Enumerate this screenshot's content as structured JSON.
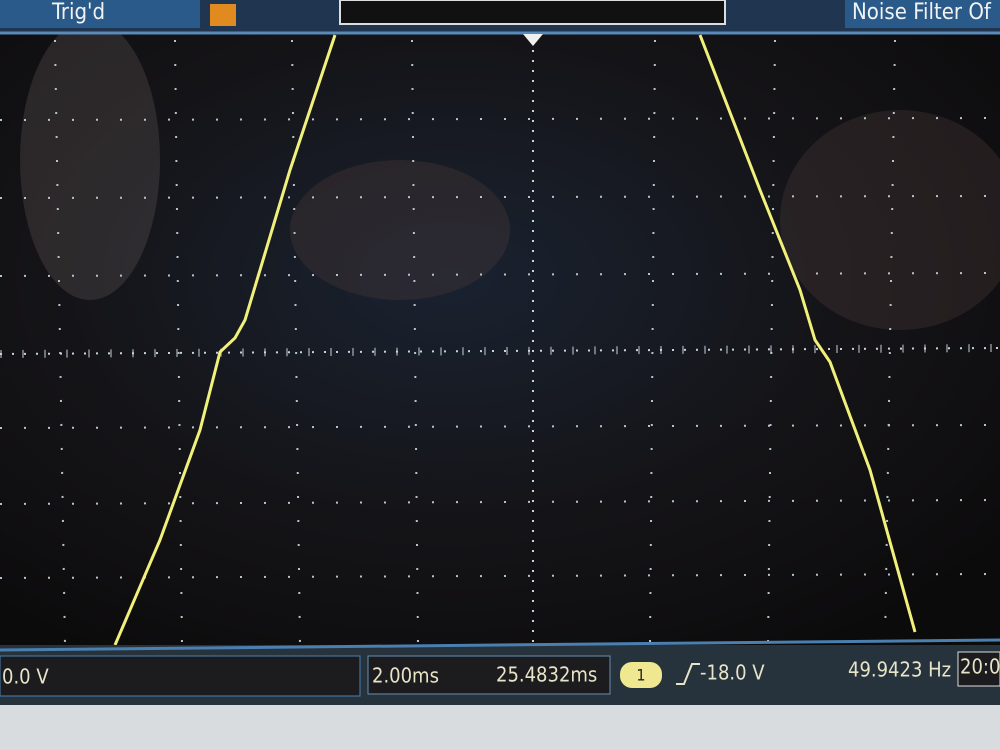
{
  "top_bar": {
    "status": "Trig'd",
    "noise_filter": "Noise Filter Of"
  },
  "bottom_bar": {
    "offset": "0.0 V",
    "timebase": "2.00ms",
    "delay": "25.4832ms",
    "channel": "1",
    "trigger_level": "-18.0 V",
    "frequency": "49.9423 Hz",
    "time": "20:0"
  }
}
